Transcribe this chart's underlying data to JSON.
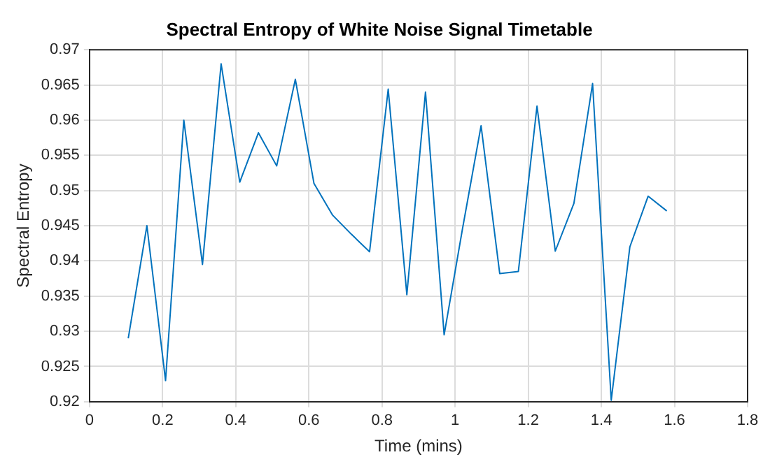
{
  "chart_data": {
    "type": "line",
    "title": "Spectral Entropy of White Noise Signal Timetable",
    "xlabel": "Time (mins)",
    "ylabel": "Spectral Entropy",
    "x": [
      0.106,
      0.157,
      0.208,
      0.258,
      0.309,
      0.36,
      0.411,
      0.462,
      0.512,
      0.563,
      0.614,
      0.665,
      0.716,
      0.766,
      0.817,
      0.868,
      0.919,
      0.97,
      1.02,
      1.071,
      1.122,
      1.173,
      1.224,
      1.274,
      1.325,
      1.376,
      1.427,
      1.478,
      1.528,
      1.579
    ],
    "series": [
      {
        "color": "#0072bd",
        "values": [
          0.929,
          0.945,
          0.923,
          0.96,
          0.9395,
          0.968,
          0.9512,
          0.9582,
          0.9535,
          0.9658,
          0.951,
          0.9465,
          0.9438,
          0.9413,
          0.9644,
          0.9352,
          0.964,
          0.9295,
          0.9445,
          0.9592,
          0.9382,
          0.9385,
          0.962,
          0.9414,
          0.9482,
          0.9652,
          0.9202,
          0.942,
          0.9492,
          0.9471
        ]
      }
    ],
    "xlim": [
      0,
      1.8
    ],
    "xticks": [
      0,
      0.2,
      0.4,
      0.6,
      0.8,
      1,
      1.2,
      1.4,
      1.6,
      1.8
    ],
    "ylim": [
      0.92,
      0.97
    ],
    "yticks": [
      0.92,
      0.925,
      0.93,
      0.935,
      0.94,
      0.945,
      0.95,
      0.955,
      0.96,
      0.965,
      0.97
    ],
    "grid": true,
    "legend": false,
    "marker": "none",
    "line_style": "solid"
  }
}
